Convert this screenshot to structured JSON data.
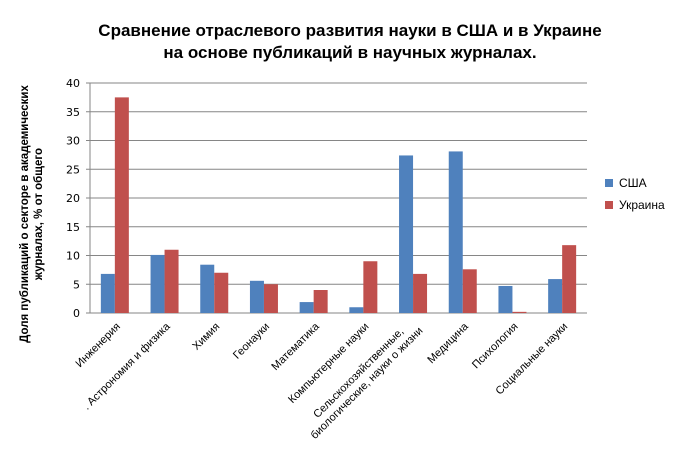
{
  "chart_data": {
    "type": "bar",
    "title": "Сравнение отраслевого развития науки в США и в Украине на основе публикаций в научных журналах.",
    "title_lines": [
      "Сравнение отраслевого развития науки в США и в Украине",
      "на основе публикаций в научных журналах."
    ],
    "xlabel": "",
    "ylabel": "Доля публикаций о секторе в академических журналах, % от общего",
    "ylabel_lines": [
      "Доля публикаций о секторе в академических",
      "журналах, % от общего"
    ],
    "ylim": [
      0,
      40
    ],
    "yticks": [
      0,
      5,
      10,
      15,
      20,
      25,
      30,
      35,
      40
    ],
    "grid": true,
    "legend_position": "right",
    "categories": [
      "Инженерия",
      ". Астрономия и физика",
      "Химия",
      "Геонауки",
      "Математика",
      "Компьютерные науки",
      "Сельскохозяйственные, биологические, науки о жизни",
      "Медицина",
      "Психология",
      "Социальные науки"
    ],
    "series": [
      {
        "name": "США",
        "color": "#4F81BD",
        "values": [
          6.8,
          10.1,
          8.4,
          5.6,
          1.9,
          1.0,
          27.4,
          28.1,
          4.7,
          5.9
        ]
      },
      {
        "name": "Украина",
        "color": "#C0504D",
        "values": [
          37.5,
          11.0,
          7.0,
          5.0,
          4.0,
          9.0,
          6.8,
          7.6,
          0.2,
          11.8
        ]
      }
    ]
  }
}
